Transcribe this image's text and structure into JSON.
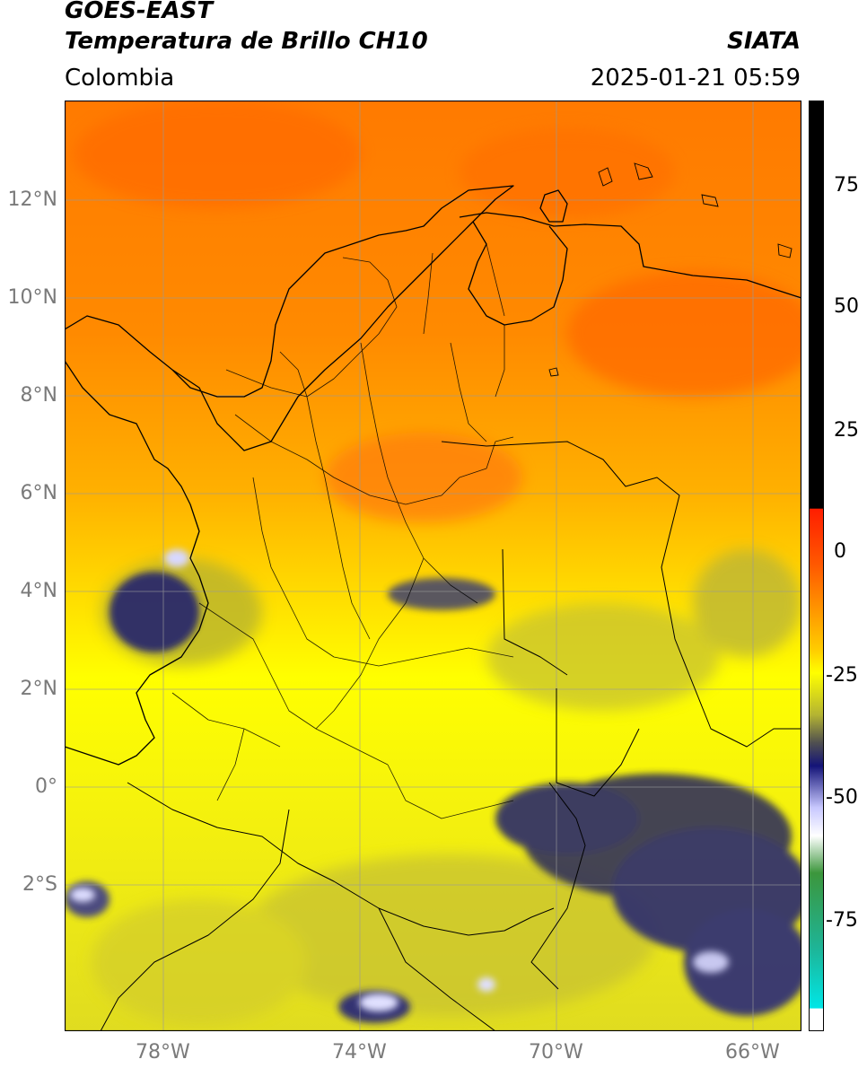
{
  "header": {
    "satellite": "GOES-EAST",
    "product": "Temperatura de Brillo CH10",
    "region": "Colombia",
    "agency": "SIATA",
    "datetime": "2025-01-21 05:59"
  },
  "axes": {
    "lon_ticks": [
      "78°W",
      "74°W",
      "70°W",
      "66°W"
    ],
    "lat_ticks": [
      "12°N",
      "10°N",
      "8°N",
      "6°N",
      "4°N",
      "2°N",
      "0°",
      "2°S"
    ]
  },
  "colorbar": {
    "ticks": [
      "75",
      "50",
      "25",
      "0",
      "-25",
      "-50",
      "-75"
    ],
    "colors": {
      "black": "#000000",
      "red": "#ff1e00",
      "orange": "#ff8c00",
      "yellow": "#ffff00",
      "olive": "#b4b432",
      "darkgray": "#505050",
      "navy": "#141478",
      "lavender": "#c8c8ff",
      "white": "#ffffff",
      "green": "#3c963c",
      "teal": "#1eb496",
      "cyan": "#00e6e6"
    }
  }
}
